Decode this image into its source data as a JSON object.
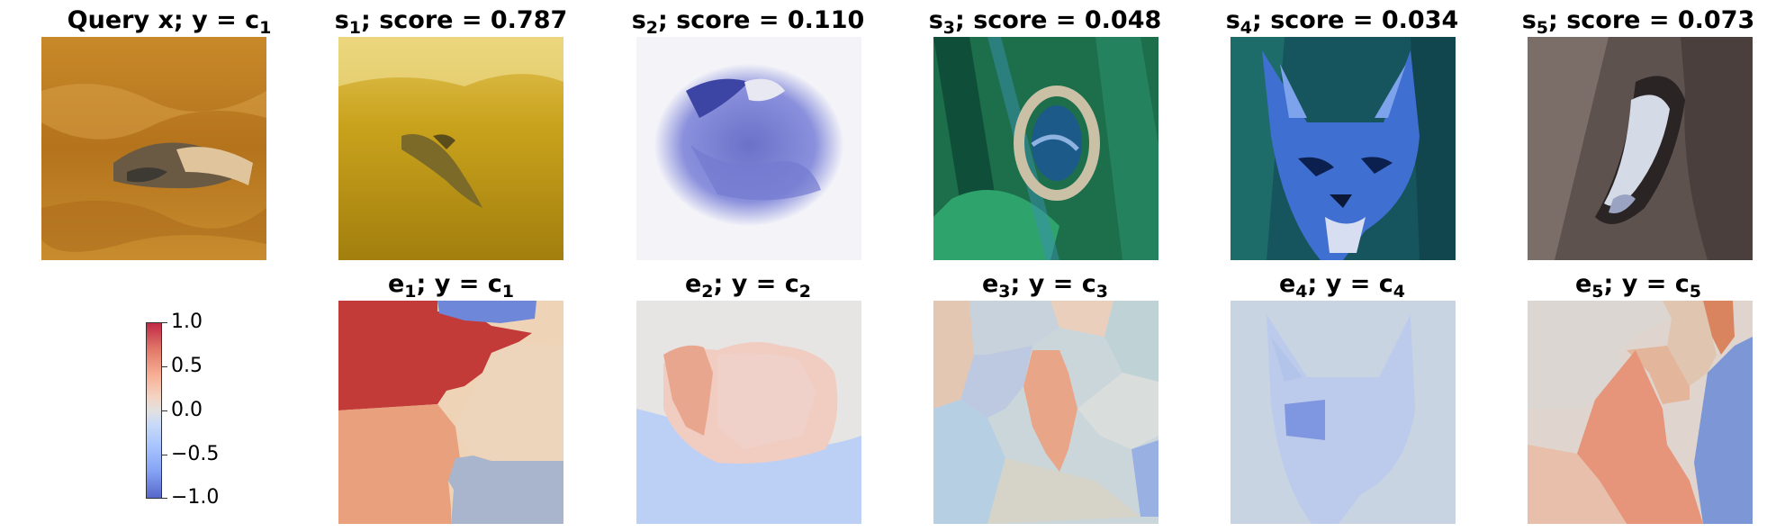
{
  "top_row": [
    {
      "title_main": "Query x; y = c",
      "title_sub": "1"
    },
    {
      "title_main": "s",
      "title_sub": "1",
      "title_rest": "; score = 0.787"
    },
    {
      "title_main": "s",
      "title_sub": "2",
      "title_rest": "; score = 0.110"
    },
    {
      "title_main": "s",
      "title_sub": "3",
      "title_rest": "; score = 0.048"
    },
    {
      "title_main": "s",
      "title_sub": "4",
      "title_rest": "; score = 0.034"
    },
    {
      "title_main": "s",
      "title_sub": "5",
      "title_rest": "; score = 0.073"
    }
  ],
  "bottom_row": [
    {
      "title_main": "e",
      "title_sub": "1",
      "title_rest": "; y = c",
      "title_sub2": "1"
    },
    {
      "title_main": "e",
      "title_sub": "2",
      "title_rest": "; y = c",
      "title_sub2": "2"
    },
    {
      "title_main": "e",
      "title_sub": "3",
      "title_rest": "; y = c",
      "title_sub2": "3"
    },
    {
      "title_main": "e",
      "title_sub": "4",
      "title_rest": "; y = c",
      "title_sub2": "4"
    },
    {
      "title_main": "e",
      "title_sub": "5",
      "title_rest": "; y = c",
      "title_sub2": "5"
    }
  ],
  "colorbar": {
    "ticks": [
      "1.0",
      "0.5",
      "0.0",
      "−0.5",
      "−1.0"
    ],
    "colormap": "coolwarm",
    "range": [
      -1.0,
      1.0
    ]
  }
}
